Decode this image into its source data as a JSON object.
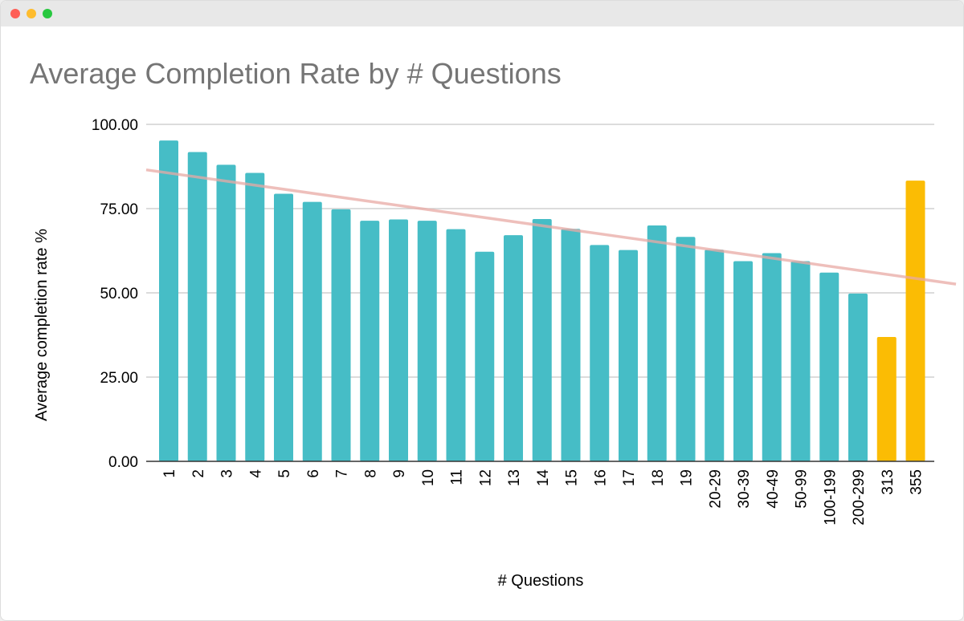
{
  "window": {
    "controls": [
      "close",
      "minimize",
      "zoom"
    ]
  },
  "chart_data": {
    "type": "bar",
    "title": "Average Completion Rate by # Questions",
    "xlabel": "# Questions",
    "ylabel": "Average completion rate %",
    "ylim": [
      0,
      100
    ],
    "yticks": [
      "0.00",
      "25.00",
      "50.00",
      "75.00",
      "100.00"
    ],
    "grid": true,
    "categories": [
      "1",
      "2",
      "3",
      "4",
      "5",
      "6",
      "7",
      "8",
      "9",
      "10",
      "11",
      "12",
      "13",
      "14",
      "15",
      "16",
      "17",
      "18",
      "19",
      "20-29",
      "30-39",
      "40-49",
      "50-99",
      "100-199",
      "200-299",
      "313",
      "355"
    ],
    "values": [
      95.2,
      91.8,
      88.0,
      85.6,
      79.4,
      77.0,
      74.8,
      71.4,
      71.8,
      71.4,
      68.9,
      62.2,
      67.1,
      71.9,
      69.0,
      64.2,
      62.7,
      70.0,
      66.6,
      62.8,
      59.4,
      61.8,
      59.4,
      56.0,
      49.8,
      36.9,
      83.3
    ],
    "bar_colors": [
      "#46bdc6",
      "#46bdc6",
      "#46bdc6",
      "#46bdc6",
      "#46bdc6",
      "#46bdc6",
      "#46bdc6",
      "#46bdc6",
      "#46bdc6",
      "#46bdc6",
      "#46bdc6",
      "#46bdc6",
      "#46bdc6",
      "#46bdc6",
      "#46bdc6",
      "#46bdc6",
      "#46bdc6",
      "#46bdc6",
      "#46bdc6",
      "#46bdc6",
      "#46bdc6",
      "#46bdc6",
      "#46bdc6",
      "#46bdc6",
      "#46bdc6",
      "#fbbc04",
      "#fbbc04"
    ],
    "trendline": {
      "type": "linear",
      "start_value": 86.5,
      "end_value": 52.6,
      "color": "#e8a9a4"
    }
  }
}
